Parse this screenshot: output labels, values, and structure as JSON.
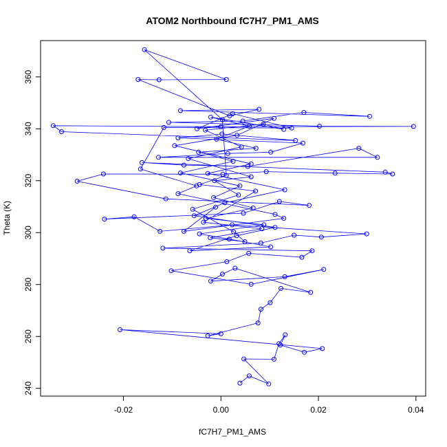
{
  "chart_data": {
    "type": "line",
    "title": "ATOM2 Northbound fC7H7_PM1_AMS",
    "xlabel": "fC7H7_PM1_AMS",
    "ylabel": "Theta (K)",
    "xlim": [
      -0.037,
      0.042
    ],
    "ylim": [
      237,
      374
    ],
    "xticks": [
      -0.02,
      0.0,
      0.02,
      0.04
    ],
    "xtick_labels": [
      "-0.02",
      "0.00",
      "0.02",
      "0.04"
    ],
    "yticks": [
      240,
      260,
      280,
      300,
      320,
      340,
      360
    ],
    "ytick_labels": [
      "240",
      "260",
      "280",
      "300",
      "320",
      "340",
      "360"
    ],
    "grid": false,
    "colors": {
      "series": "#0000ff",
      "axis": "#000000"
    },
    "series": [
      {
        "marker": "open-circle",
        "points": [
          [
            0.0039,
            242.0
          ],
          [
            0.0058,
            244.8
          ],
          [
            0.0098,
            241.7
          ],
          [
            0.0047,
            251.3
          ],
          [
            0.0109,
            251.2
          ],
          [
            0.0119,
            257.2
          ],
          [
            0.0132,
            260.6
          ],
          [
            0.0122,
            256.7
          ],
          [
            0.0171,
            253.9
          ],
          [
            0.0208,
            255.3
          ],
          [
            -0.0207,
            262.6
          ],
          [
            0.0,
            261.0
          ],
          [
            -0.0027,
            260.2
          ],
          [
            0.0076,
            265.2
          ],
          [
            0.0082,
            270.5
          ],
          [
            0.0101,
            273.0
          ],
          [
            0.0123,
            278.5
          ],
          [
            0.0184,
            277.0
          ],
          [
            0.0029,
            286.3
          ],
          [
            0.0003,
            284.0
          ],
          [
            -0.0021,
            281.3
          ],
          [
            0.0131,
            283.0
          ],
          [
            0.0211,
            285.8
          ],
          [
            0.0062,
            280.1
          ],
          [
            -0.0102,
            285.3
          ],
          [
            0.0012,
            288.8
          ],
          [
            0.0057,
            292.0
          ],
          [
            0.0166,
            290.5
          ],
          [
            0.0187,
            293.0
          ],
          [
            -0.0119,
            294.0
          ],
          [
            0.0082,
            296.0
          ],
          [
            0.015,
            299.0
          ],
          [
            0.0206,
            298.3
          ],
          [
            0.0299,
            299.5
          ],
          [
            0.0023,
            303.0
          ],
          [
            -0.0125,
            300.5
          ],
          [
            -0.0178,
            306.1
          ],
          [
            -0.0239,
            305.2
          ],
          [
            0.0046,
            307.5
          ],
          [
            0.012,
            312.0
          ],
          [
            0.0181,
            310.5
          ],
          [
            -0.0113,
            313.0
          ],
          [
            -0.0295,
            319.8
          ],
          [
            -0.0241,
            322.6
          ],
          [
            0.0004,
            322.5
          ],
          [
            0.0093,
            323.5
          ],
          [
            0.0234,
            322.9
          ],
          [
            0.0352,
            322.6
          ],
          [
            0.0337,
            323.3
          ],
          [
            -0.0162,
            327.0
          ],
          [
            -0.0076,
            326.0
          ],
          [
            0.0055,
            325.5
          ],
          [
            0.0283,
            332.5
          ],
          [
            0.0321,
            329.0
          ],
          [
            -0.0128,
            329.0
          ],
          [
            0.0014,
            330.5
          ],
          [
            0.0102,
            331.0
          ],
          [
            0.0168,
            334.5
          ],
          [
            -0.0088,
            336.5
          ],
          [
            0.0002,
            338.0
          ],
          [
            0.0153,
            335.5
          ],
          [
            -0.0327,
            338.9
          ],
          [
            -0.0344,
            341.2
          ],
          [
            0.0,
            340.8
          ],
          [
            0.0395,
            340.9
          ],
          [
            0.0202,
            341.0
          ],
          [
            -0.0107,
            342.5
          ],
          [
            0.0045,
            343.0
          ],
          [
            0.017,
            346.3
          ],
          [
            0.0305,
            344.8
          ],
          [
            -0.0083,
            347.0
          ],
          [
            0.0078,
            347.5
          ],
          [
            0.0018,
            345.0
          ],
          [
            -0.017,
            359.0
          ],
          [
            -0.0127,
            358.9
          ],
          [
            0.0011,
            359.0
          ],
          [
            -0.0157,
            370.5
          ],
          [
            0.0003,
            343.5
          ],
          [
            0.0011,
            322.0
          ],
          [
            -0.0044,
            318.5
          ],
          [
            0.0071,
            316.0
          ],
          [
            -0.0036,
            304.0
          ],
          [
            0.0084,
            301.5
          ],
          [
            -0.0022,
            298.0
          ],
          [
            0.0049,
            296.5
          ],
          [
            0.0026,
            300.3
          ],
          [
            -0.0058,
            309.0
          ],
          [
            0.0036,
            314.5
          ],
          [
            -0.0013,
            320.0
          ],
          [
            0.0062,
            321.5
          ],
          [
            -0.0067,
            328.5
          ],
          [
            0.0042,
            333.0
          ],
          [
            -0.0032,
            339.5
          ],
          [
            0.0087,
            341.8
          ],
          [
            0.0129,
            339.8
          ],
          [
            -0.0021,
            344.5
          ],
          [
            0.0058,
            341.0
          ],
          [
            -0.0009,
            336.0
          ],
          [
            0.0072,
            332.5
          ],
          [
            -0.0046,
            331.0
          ],
          [
            0.0025,
            327.5
          ],
          [
            -0.0083,
            323.0
          ],
          [
            0.0039,
            318.0
          ],
          [
            -0.0015,
            313.5
          ],
          [
            0.0066,
            309.5
          ],
          [
            -0.0031,
            305.5
          ],
          [
            0.0088,
            303.0
          ],
          [
            -0.0044,
            299.5
          ],
          [
            0.0017,
            297.5
          ],
          [
            0.0102,
            294.5
          ],
          [
            -0.0064,
            293.0
          ],
          [
            0.0032,
            298.8
          ],
          [
            0.0111,
            302.0
          ],
          [
            -0.0055,
            306.5
          ],
          [
            0.0008,
            311.5
          ],
          [
            0.0131,
            316.5
          ],
          [
            -0.0027,
            322.8
          ],
          [
            0.0062,
            326.5
          ],
          [
            -0.0095,
            333.5
          ],
          [
            0.0033,
            337.5
          ],
          [
            0.0109,
            344.0
          ],
          [
            -0.0049,
            340.0
          ],
          [
            0.0024,
            345.8
          ],
          [
            0.0145,
            340.3
          ],
          [
            -0.0117,
            340.5
          ],
          [
            -0.0165,
            324.5
          ],
          [
            -0.005,
            318.0
          ],
          [
            -0.0088,
            315.0
          ],
          [
            0.0111,
            307.0
          ],
          [
            0.0129,
            305.5
          ],
          [
            -0.0076,
            300.5
          ],
          [
            -0.0011,
            309.8
          ]
        ]
      }
    ]
  }
}
